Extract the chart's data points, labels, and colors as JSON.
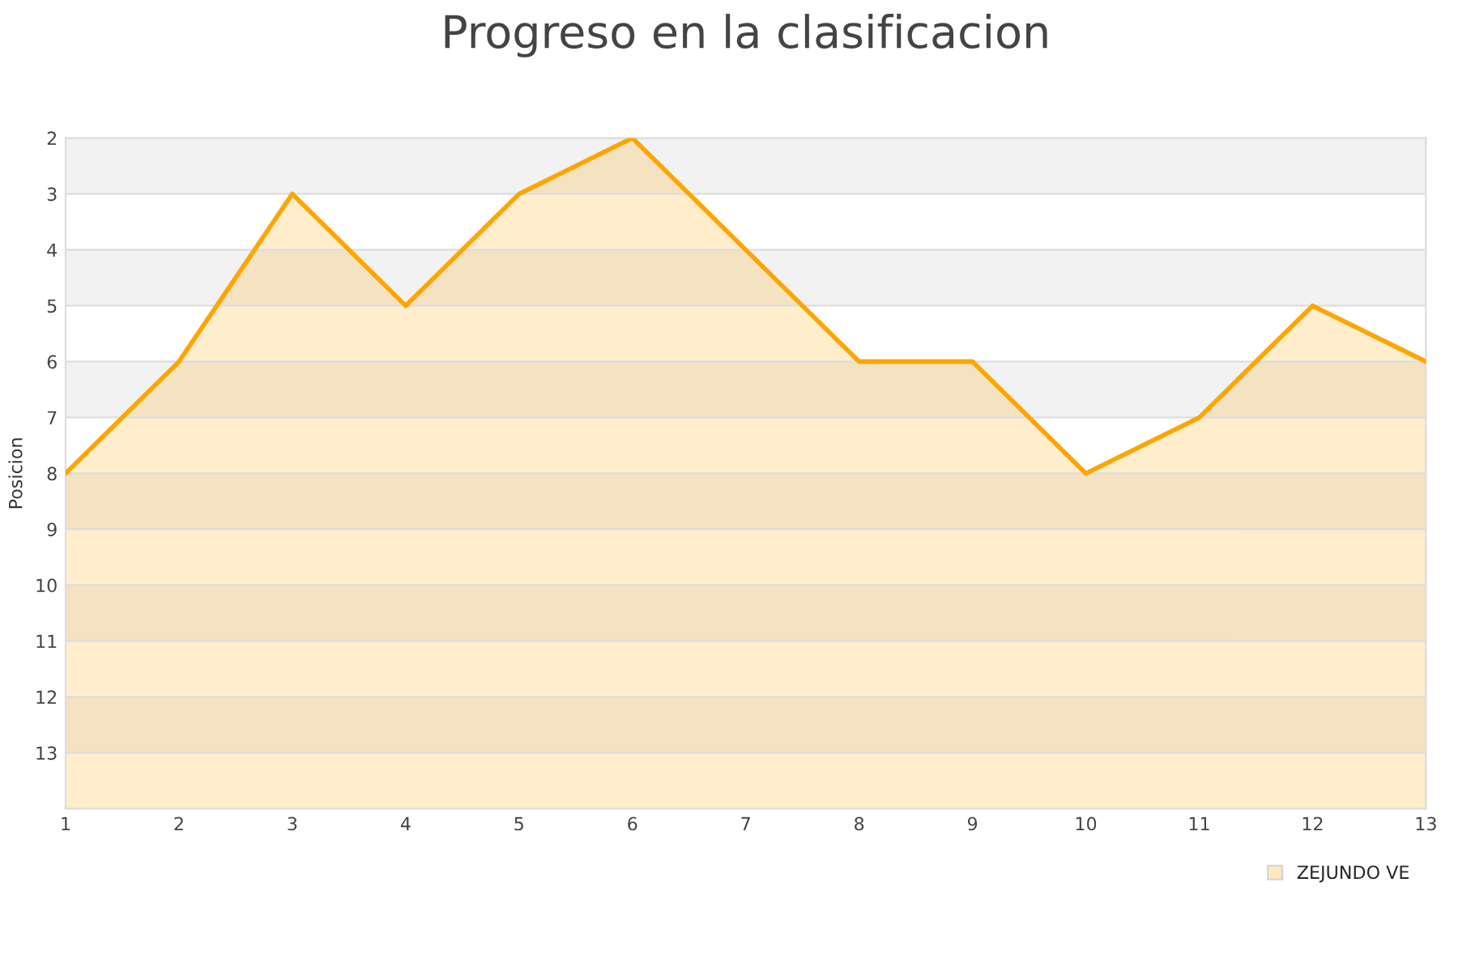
{
  "chart_data": {
    "type": "area",
    "title": "Progreso en la clasificacion",
    "ylabel": "Posicion",
    "x": [
      1,
      2,
      3,
      4,
      5,
      6,
      7,
      8,
      9,
      10,
      11,
      12,
      13
    ],
    "series": [
      {
        "name": "ZEJUNDO VE",
        "color": "#ffa500",
        "values": [
          8,
          6,
          3,
          5,
          3,
          2,
          4,
          6,
          6,
          8,
          7,
          5,
          6
        ]
      }
    ],
    "xlim": [
      1,
      13
    ],
    "xticks": [
      1,
      2,
      3,
      4,
      5,
      6,
      7,
      8,
      9,
      10,
      11,
      12,
      13
    ],
    "ylim": [
      14,
      2
    ],
    "yticks": [
      2,
      3,
      4,
      5,
      6,
      7,
      8,
      9,
      10,
      11,
      12,
      13
    ],
    "bands": [
      {
        "axis": "y",
        "from": 2,
        "to": 3,
        "color": "#f2f2f2"
      },
      {
        "axis": "y",
        "from": 4,
        "to": 5,
        "color": "#f2f2f2"
      },
      {
        "axis": "y",
        "from": 6,
        "to": 7,
        "color": "#f2f2f2"
      },
      {
        "axis": "y",
        "from": 8,
        "to": 9,
        "color": "#f2f2f2"
      },
      {
        "axis": "y",
        "from": 10,
        "to": 11,
        "color": "#f2f2f2"
      },
      {
        "axis": "y",
        "from": 12,
        "to": 13,
        "color": "#f2f2f2"
      }
    ],
    "grid": "y",
    "legend": "bottom right"
  }
}
